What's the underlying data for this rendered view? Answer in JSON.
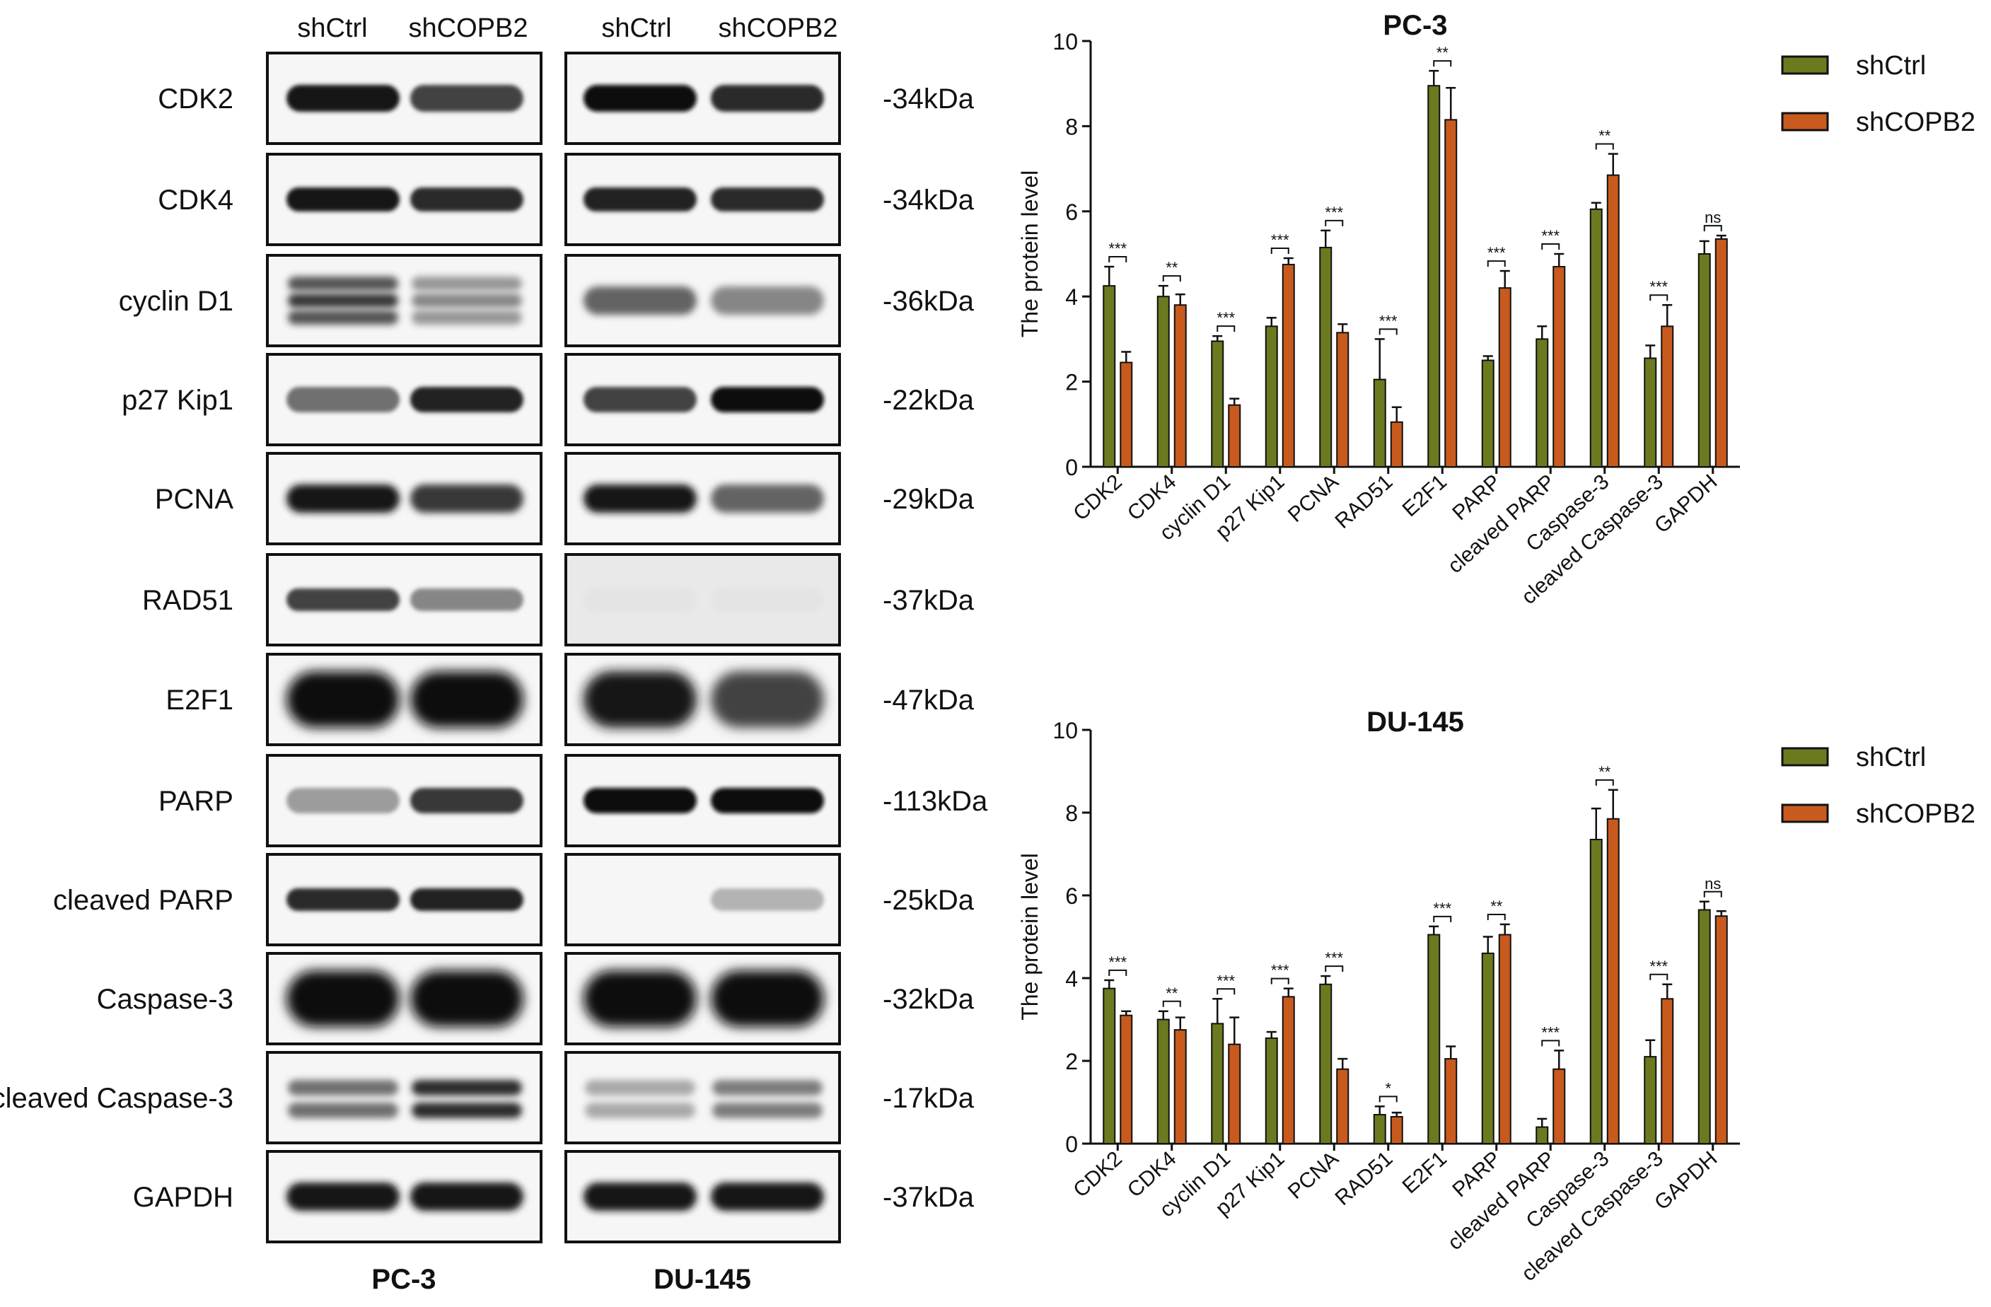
{
  "blot": {
    "col_labels": [
      "shCtrl",
      "shCOPB2",
      "shCtrl",
      "shCOPB2"
    ],
    "rows": [
      {
        "label": "CDK2",
        "mw": "-34kDa"
      },
      {
        "label": "CDK4",
        "mw": "-34kDa"
      },
      {
        "label": "cyclin D1",
        "mw": "-36kDa"
      },
      {
        "label": "p27 Kip1",
        "mw": "-22kDa"
      },
      {
        "label": "PCNA",
        "mw": "-29kDa"
      },
      {
        "label": "RAD51",
        "mw": "-37kDa"
      },
      {
        "label": "E2F1",
        "mw": "-47kDa"
      },
      {
        "label": "PARP",
        "mw": "-113kDa"
      },
      {
        "label": "cleaved PARP",
        "mw": "-25kDa"
      },
      {
        "label": "Caspase-3",
        "mw": "-32kDa"
      },
      {
        "label": "cleaved Caspase-3",
        "mw": "-17kDa"
      },
      {
        "label": "GAPDH",
        "mw": "-37kDa"
      }
    ],
    "panel_labels": [
      "PC-3",
      "DU-145"
    ]
  },
  "colors": {
    "shCtrl": "#6b7a1f",
    "shCOPB2": "#c85a1e"
  },
  "chart_data": [
    {
      "type": "bar",
      "title": "PC-3",
      "ylabel": "The protein level",
      "ylim": [
        0,
        10
      ],
      "yticks": [
        0,
        2,
        4,
        6,
        8,
        10
      ],
      "categories": [
        "CDK2",
        "CDK4",
        "cyclin D1",
        "p27 Kip1",
        "PCNA",
        "RAD51",
        "E2F1",
        "PARP",
        "cleaved PARP",
        "Caspase-3",
        "cleaved Caspase-3",
        "GAPDH"
      ],
      "series": [
        {
          "name": "shCtrl",
          "values": [
            4.25,
            4.0,
            2.95,
            3.3,
            5.15,
            2.05,
            8.95,
            2.5,
            3.0,
            6.05,
            2.55,
            5.0
          ],
          "errors": [
            0.45,
            0.25,
            0.12,
            0.2,
            0.4,
            0.95,
            0.35,
            0.1,
            0.3,
            0.15,
            0.3,
            0.3
          ]
        },
        {
          "name": "shCOPB2",
          "values": [
            2.45,
            3.8,
            1.45,
            4.75,
            3.15,
            1.05,
            8.15,
            4.2,
            4.7,
            6.85,
            3.3,
            5.35
          ],
          "errors": [
            0.25,
            0.25,
            0.15,
            0.15,
            0.2,
            0.35,
            0.75,
            0.4,
            0.3,
            0.5,
            0.5,
            0.08
          ]
        }
      ],
      "significance": [
        "***",
        "**",
        "***",
        "***",
        "***",
        "***",
        "**",
        "***",
        "***",
        "**",
        "***",
        "ns"
      ],
      "legend": "top-right"
    },
    {
      "type": "bar",
      "title": "DU-145",
      "ylabel": "The protein level",
      "ylim": [
        0,
        10
      ],
      "yticks": [
        0,
        2,
        4,
        6,
        8,
        10
      ],
      "categories": [
        "CDK2",
        "CDK4",
        "cyclin D1",
        "p27 Kip1",
        "PCNA",
        "RAD51",
        "E2F1",
        "PARP",
        "cleaved PARP",
        "Caspase-3",
        "cleaved Caspase-3",
        "GAPDH"
      ],
      "series": [
        {
          "name": "shCtrl",
          "values": [
            3.75,
            3.0,
            2.9,
            2.55,
            3.85,
            0.7,
            5.05,
            4.6,
            0.4,
            7.35,
            2.1,
            5.65
          ],
          "errors": [
            0.2,
            0.2,
            0.6,
            0.15,
            0.2,
            0.2,
            0.2,
            0.4,
            0.2,
            0.75,
            0.4,
            0.2
          ]
        },
        {
          "name": "shCOPB2",
          "values": [
            3.1,
            2.75,
            2.4,
            3.55,
            1.8,
            0.65,
            2.05,
            5.05,
            1.8,
            7.85,
            3.5,
            5.5
          ],
          "errors": [
            0.1,
            0.3,
            0.65,
            0.2,
            0.25,
            0.1,
            0.3,
            0.25,
            0.45,
            0.7,
            0.35,
            0.12
          ]
        }
      ],
      "significance": [
        "***",
        "**",
        "***",
        "***",
        "***",
        "*",
        "***",
        "**",
        "***",
        "**",
        "***",
        "ns"
      ],
      "legend": "top-right"
    }
  ]
}
